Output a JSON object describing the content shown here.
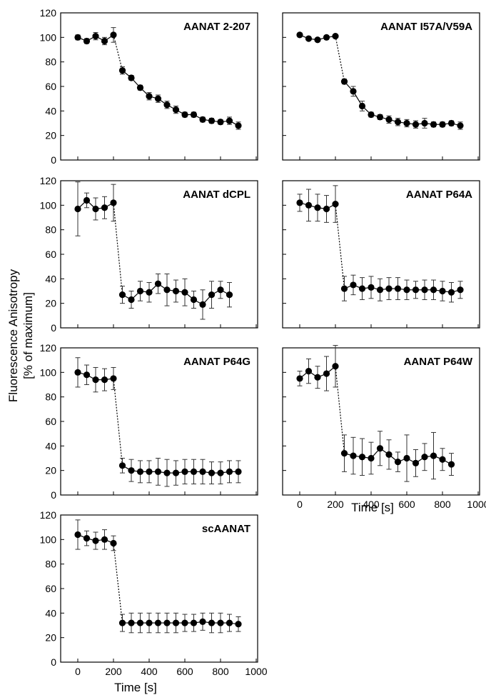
{
  "figure": {
    "ylabel_line1": "Fluorescence Anisotropy",
    "ylabel_line2": "[% of maximum]",
    "xlabel": "Time [s]"
  },
  "chart_data": [
    {
      "type": "scatter",
      "title": "AANAT 2-207",
      "xlim": [
        0,
        1000
      ],
      "ylim": [
        0,
        120
      ],
      "x": [
        0,
        50,
        100,
        150,
        200,
        250,
        300,
        350,
        400,
        450,
        500,
        550,
        600,
        650,
        700,
        750,
        800,
        850,
        900
      ],
      "y": [
        100,
        97,
        101,
        97,
        102,
        73,
        67,
        59,
        52,
        50,
        45,
        41,
        37,
        37,
        33,
        32,
        31,
        32,
        28
      ],
      "err": [
        2,
        2,
        3,
        3,
        6,
        3,
        2,
        2,
        3,
        3,
        3,
        3,
        2,
        2,
        2,
        2,
        2,
        3,
        3
      ],
      "ticks_x": [],
      "ticks_y": [
        "0",
        "20",
        "40",
        "60",
        "80",
        "100",
        "120"
      ]
    },
    {
      "type": "scatter",
      "title": "AANAT I57A/V59A",
      "xlim": [
        0,
        1000
      ],
      "ylim": [
        0,
        120
      ],
      "x": [
        0,
        50,
        100,
        150,
        200,
        250,
        300,
        350,
        400,
        450,
        500,
        550,
        600,
        650,
        700,
        750,
        800,
        850,
        900
      ],
      "y": [
        102,
        99,
        98,
        100,
        101,
        64,
        56,
        44,
        37,
        35,
        33,
        31,
        30,
        29,
        30,
        29,
        29,
        30,
        28
      ],
      "err": [
        1,
        1,
        1,
        1,
        1,
        2,
        4,
        4,
        2,
        2,
        3,
        3,
        3,
        3,
        4,
        2,
        2,
        2,
        3
      ],
      "ticks_x": [],
      "ticks_y": []
    },
    {
      "type": "scatter",
      "title": "AANAT dCPL",
      "xlim": [
        0,
        1000
      ],
      "ylim": [
        0,
        120
      ],
      "x": [
        0,
        50,
        100,
        150,
        200,
        250,
        300,
        350,
        400,
        450,
        500,
        550,
        600,
        650,
        700,
        750,
        800,
        850
      ],
      "y": [
        97,
        104,
        97,
        98,
        102,
        27,
        23,
        30,
        29,
        36,
        31,
        30,
        29,
        23,
        19,
        27,
        31,
        27
      ],
      "err": [
        22,
        6,
        9,
        9,
        15,
        7,
        7,
        8,
        8,
        8,
        13,
        9,
        11,
        7,
        12,
        11,
        7,
        10
      ],
      "ticks_x": [],
      "ticks_y": [
        "0",
        "20",
        "40",
        "60",
        "80",
        "100",
        "120"
      ]
    },
    {
      "type": "scatter",
      "title": "AANAT P64A",
      "xlim": [
        0,
        1000
      ],
      "ylim": [
        0,
        120
      ],
      "x": [
        0,
        50,
        100,
        150,
        200,
        250,
        300,
        350,
        400,
        450,
        500,
        550,
        600,
        650,
        700,
        750,
        800,
        850,
        900
      ],
      "y": [
        102,
        100,
        98,
        97,
        101,
        32,
        35,
        32,
        33,
        31,
        32,
        32,
        31,
        31,
        31,
        31,
        30,
        29,
        31
      ],
      "err": [
        7,
        13,
        11,
        11,
        15,
        10,
        8,
        9,
        9,
        9,
        9,
        9,
        8,
        7,
        8,
        8,
        8,
        8,
        7
      ],
      "ticks_x": [],
      "ticks_y": []
    },
    {
      "type": "scatter",
      "title": "AANAT P64G",
      "xlim": [
        0,
        1000
      ],
      "ylim": [
        0,
        120
      ],
      "x": [
        0,
        50,
        100,
        150,
        200,
        250,
        300,
        350,
        400,
        450,
        500,
        550,
        600,
        650,
        700,
        750,
        800,
        850,
        900
      ],
      "y": [
        100,
        98,
        94,
        94,
        95,
        24,
        20,
        19,
        19,
        19,
        18,
        18,
        19,
        19,
        19,
        18,
        18,
        19,
        19
      ],
      "err": [
        12,
        8,
        10,
        9,
        9,
        6,
        9,
        9,
        9,
        11,
        11,
        10,
        10,
        10,
        10,
        9,
        9,
        9,
        9
      ],
      "ticks_x": [],
      "ticks_y": [
        "0",
        "20",
        "40",
        "60",
        "80",
        "100",
        "120"
      ]
    },
    {
      "type": "scatter",
      "title": "AANAT P64W",
      "xlim": [
        0,
        1000
      ],
      "ylim": [
        0,
        120
      ],
      "x": [
        0,
        50,
        100,
        150,
        200,
        250,
        300,
        350,
        400,
        450,
        500,
        550,
        600,
        650,
        700,
        750,
        800,
        850
      ],
      "y": [
        95,
        101,
        96,
        99,
        105,
        34,
        32,
        31,
        30,
        38,
        33,
        27,
        30,
        26,
        31,
        32,
        29,
        25
      ],
      "err": [
        6,
        10,
        9,
        14,
        17,
        15,
        15,
        15,
        13,
        14,
        12,
        8,
        19,
        11,
        11,
        19,
        9,
        9
      ],
      "ticks_x": [
        "0",
        "200",
        "400",
        "600",
        "800",
        "1000"
      ],
      "ticks_y": []
    },
    {
      "type": "scatter",
      "title": "scAANAT",
      "xlim": [
        0,
        1000
      ],
      "ylim": [
        0,
        120
      ],
      "x": [
        0,
        50,
        100,
        150,
        200,
        250,
        300,
        350,
        400,
        450,
        500,
        550,
        600,
        650,
        700,
        750,
        800,
        850,
        900
      ],
      "y": [
        104,
        101,
        99,
        100,
        97,
        32,
        32,
        32,
        32,
        32,
        32,
        32,
        32,
        32,
        33,
        32,
        32,
        32,
        31
      ],
      "err": [
        12,
        6,
        7,
        8,
        6,
        7,
        8,
        8,
        8,
        8,
        8,
        8,
        7,
        7,
        7,
        8,
        8,
        7,
        6
      ],
      "ticks_x": [
        "0",
        "200",
        "400",
        "600",
        "800",
        "1000"
      ],
      "ticks_y": [
        "0",
        "20",
        "40",
        "60",
        "80",
        "100",
        "120"
      ]
    }
  ]
}
